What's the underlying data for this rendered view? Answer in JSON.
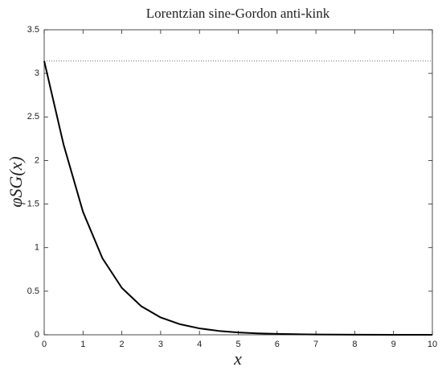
{
  "chart_data": {
    "type": "line",
    "title": "Lorentzian sine-Gordon anti-kink",
    "xlabel": "x",
    "ylabel": "φSG(x)",
    "x": [
      0,
      0.5,
      1,
      1.5,
      2,
      2.5,
      3,
      3.5,
      4,
      4.5,
      5,
      5.5,
      6,
      7,
      8,
      9,
      10
    ],
    "series": [
      {
        "color": "#000000",
        "values": [
          3.1416,
          2.181,
          1.41,
          0.878,
          0.538,
          0.328,
          0.199,
          0.121,
          0.0733,
          0.0444,
          0.027,
          0.0164,
          0.0099,
          0.0036,
          0.0013,
          0.0005,
          0.0002
        ]
      }
    ],
    "hline": {
      "value": 3.1416,
      "color": "#555555"
    },
    "xlim": [
      0,
      10
    ],
    "ylim": [
      0,
      3.5
    ],
    "xticks": [
      0,
      1,
      2,
      3,
      4,
      5,
      6,
      7,
      8,
      9,
      10
    ],
    "yticks": [
      0,
      0.5,
      1,
      1.5,
      2,
      2.5,
      3,
      3.5
    ],
    "grid": false
  }
}
